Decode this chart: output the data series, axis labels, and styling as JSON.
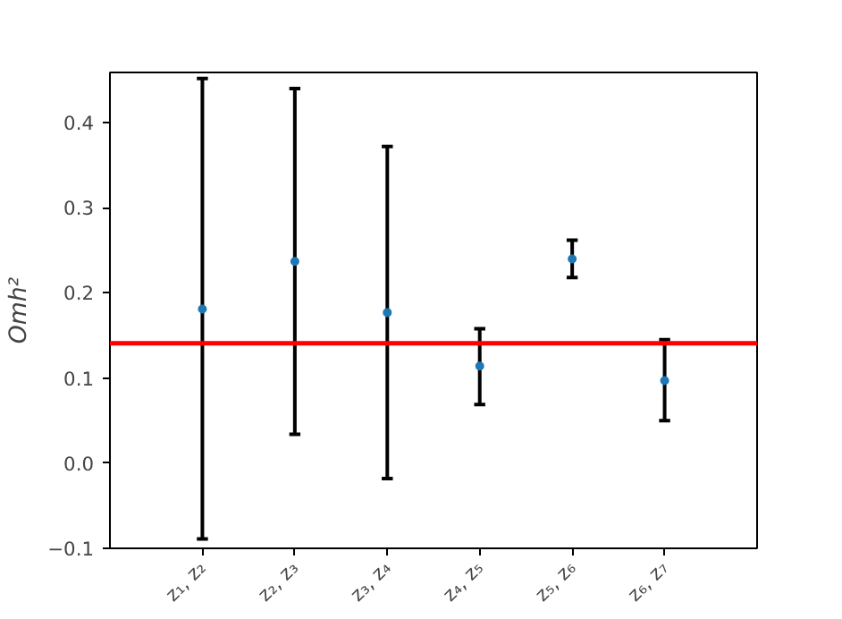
{
  "chart_data": {
    "type": "scatter",
    "ylabel": "Omh²",
    "categories": [
      "z₁, z₂",
      "z₂, z₃",
      "z₃, z₄",
      "z₄, z₅",
      "z₅, z₆",
      "z₆, z₇"
    ],
    "series": [
      {
        "color": "#1f77b4",
        "values": [
          0.181,
          0.237,
          0.177,
          0.114,
          0.24,
          0.097
        ],
        "errors": [
          [
            -0.089,
            0.452
          ],
          [
            0.034,
            0.44
          ],
          [
            -0.018,
            0.372
          ],
          [
            0.069,
            0.158
          ],
          [
            0.218,
            0.262
          ],
          [
            0.05,
            0.145
          ]
        ]
      }
    ],
    "ylim": [
      -0.1,
      0.459
    ],
    "yticks": [
      {
        "value": -0.1,
        "label": "−0.1"
      },
      {
        "value": 0,
        "label": "0.0"
      },
      {
        "value": 0.1,
        "label": "0.1"
      },
      {
        "value": 0.2,
        "label": "0.2"
      },
      {
        "value": 0.3,
        "label": "0.3"
      },
      {
        "value": 0.4,
        "label": "0.4"
      }
    ],
    "ref_lines": [
      {
        "axis": "y",
        "value": 0.141,
        "color": "#ff0000"
      }
    ],
    "marker": "circle",
    "grid": false
  }
}
